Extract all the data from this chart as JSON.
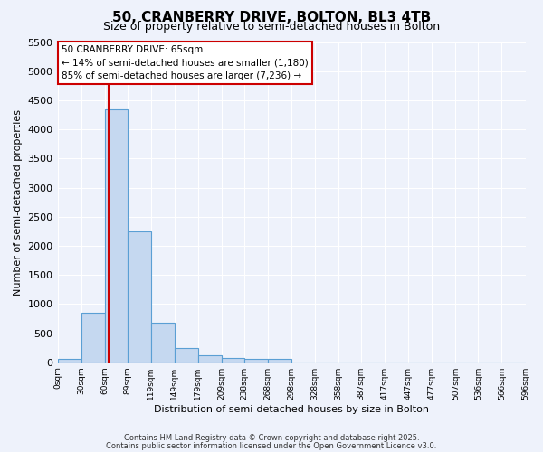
{
  "title": "50, CRANBERRY DRIVE, BOLTON, BL3 4TB",
  "subtitle": "Size of property relative to semi-detached houses in Bolton",
  "xlabel": "Distribution of semi-detached houses by size in Bolton",
  "ylabel": "Number of semi-detached properties",
  "bar_color": "#c5d8f0",
  "bar_edge_color": "#5a9fd4",
  "background_color": "#eef2fb",
  "grid_color": "#ffffff",
  "bins": [
    0,
    30,
    60,
    89,
    119,
    149,
    179,
    209,
    238,
    268,
    298,
    328,
    358,
    387,
    417,
    447,
    477,
    507,
    536,
    566,
    596
  ],
  "bin_labels": [
    "0sqm",
    "30sqm",
    "60sqm",
    "89sqm",
    "119sqm",
    "149sqm",
    "179sqm",
    "209sqm",
    "238sqm",
    "268sqm",
    "298sqm",
    "328sqm",
    "358sqm",
    "387sqm",
    "417sqm",
    "447sqm",
    "477sqm",
    "507sqm",
    "536sqm",
    "566sqm",
    "596sqm"
  ],
  "bar_heights": [
    50,
    850,
    4350,
    2250,
    680,
    250,
    120,
    70,
    55,
    50,
    0,
    0,
    0,
    0,
    0,
    0,
    0,
    0,
    0,
    0
  ],
  "ylim": [
    0,
    5500
  ],
  "yticks": [
    0,
    500,
    1000,
    1500,
    2000,
    2500,
    3000,
    3500,
    4000,
    4500,
    5000,
    5500
  ],
  "red_line_x": 65,
  "annotation_title": "50 CRANBERRY DRIVE: 65sqm",
  "annotation_line1": "← 14% of semi-detached houses are smaller (1,180)",
  "annotation_line2": "85% of semi-detached houses are larger (7,236) →",
  "annotation_color": "#cc0000",
  "footer_line1": "Contains HM Land Registry data © Crown copyright and database right 2025.",
  "footer_line2": "Contains public sector information licensed under the Open Government Licence v3.0."
}
